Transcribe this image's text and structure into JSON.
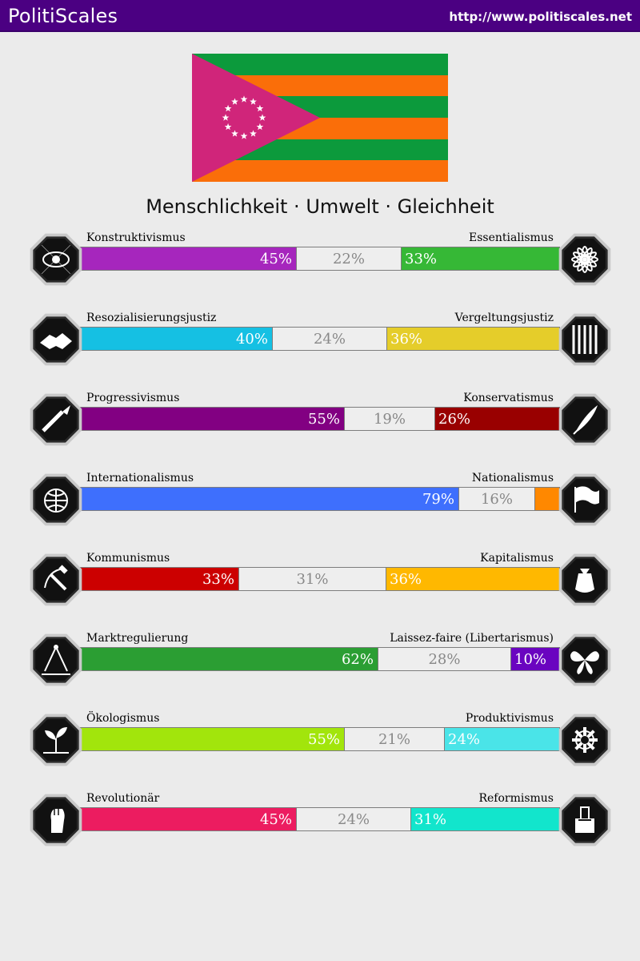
{
  "header": {
    "brand": "PolitiScales",
    "url": "http://www.politiscales.net"
  },
  "flag": {
    "description_colors": {
      "stripe_green": "#0c9a3c",
      "stripe_orange": "#fa6e09",
      "triangle": "#d0257a",
      "stars": "#ffffff"
    },
    "star_count": 12
  },
  "slogan": "Menschlichkeit · Umwelt · Gleichheit",
  "chart_data": {
    "type": "bar",
    "orientation": "horizontal-stacked",
    "axes": [
      {
        "left_label": "Konstruktivismus",
        "right_label": "Essentialismus",
        "left_value": 45,
        "center_value": 22,
        "right_value": 33,
        "left_text": "45%",
        "center_text": "22%",
        "right_text": "33%",
        "left_color": "#a626bd",
        "right_color": "#36b836",
        "left_icon": "eye-icon",
        "right_icon": "dna-flower-icon"
      },
      {
        "left_label": "Resozialisierungsjustiz",
        "right_label": "Vergeltungsjustiz",
        "left_value": 40,
        "center_value": 24,
        "right_value": 36,
        "left_text": "40%",
        "center_text": "24%",
        "right_text": "36%",
        "left_color": "#15c0e3",
        "right_color": "#e5cd2a",
        "left_icon": "handshake-icon",
        "right_icon": "prison-bars-icon"
      },
      {
        "left_label": "Progressivismus",
        "right_label": "Konservatismus",
        "left_value": 55,
        "center_value": 19,
        "right_value": 26,
        "left_text": "55%",
        "center_text": "19%",
        "right_text": "26%",
        "left_color": "#820082",
        "right_color": "#990000",
        "left_icon": "torch-icon",
        "right_icon": "quill-icon"
      },
      {
        "left_label": "Internationalismus",
        "right_label": "Nationalismus",
        "left_value": 79,
        "center_value": 16,
        "right_value": 5,
        "left_text": "79%",
        "center_text": "16%",
        "right_text": "",
        "left_color": "#3e6ffd",
        "right_color": "#ff8800",
        "left_icon": "globe-icon",
        "right_icon": "flag-icon"
      },
      {
        "left_label": "Kommunismus",
        "right_label": "Kapitalismus",
        "left_value": 33,
        "center_value": 31,
        "right_value": 36,
        "left_text": "33%",
        "center_text": "31%",
        "right_text": "36%",
        "left_color": "#cc0000",
        "right_color": "#ffb800",
        "left_icon": "hammer-sickle-icon",
        "right_icon": "money-bag-icon"
      },
      {
        "left_label": "Marktregulierung",
        "right_label": "Laissez-faire (Libertarismus)",
        "left_value": 62,
        "center_value": 28,
        "right_value": 10,
        "left_text": "62%",
        "center_text": "28%",
        "right_text": "10%",
        "left_color": "#2b9e33",
        "right_color": "#6a04c0",
        "left_icon": "ruler-compass-icon",
        "right_icon": "butterfly-icon"
      },
      {
        "left_label": "Ökologismus",
        "right_label": "Produktivismus",
        "left_value": 55,
        "center_value": 21,
        "right_value": 24,
        "left_text": "55%",
        "center_text": "21%",
        "right_text": "24%",
        "left_color": "#a2e50c",
        "right_color": "#4ae4e8",
        "left_icon": "sprout-icon",
        "right_icon": "gear-icon"
      },
      {
        "left_label": "Revolutionär",
        "right_label": "Reformismus",
        "left_value": 45,
        "center_value": 24,
        "right_value": 31,
        "left_text": "45%",
        "center_text": "24%",
        "right_text": "31%",
        "left_color": "#ec1c60",
        "right_color": "#12e5cc",
        "left_icon": "raised-fist-icon",
        "right_icon": "ballot-box-icon"
      }
    ]
  }
}
